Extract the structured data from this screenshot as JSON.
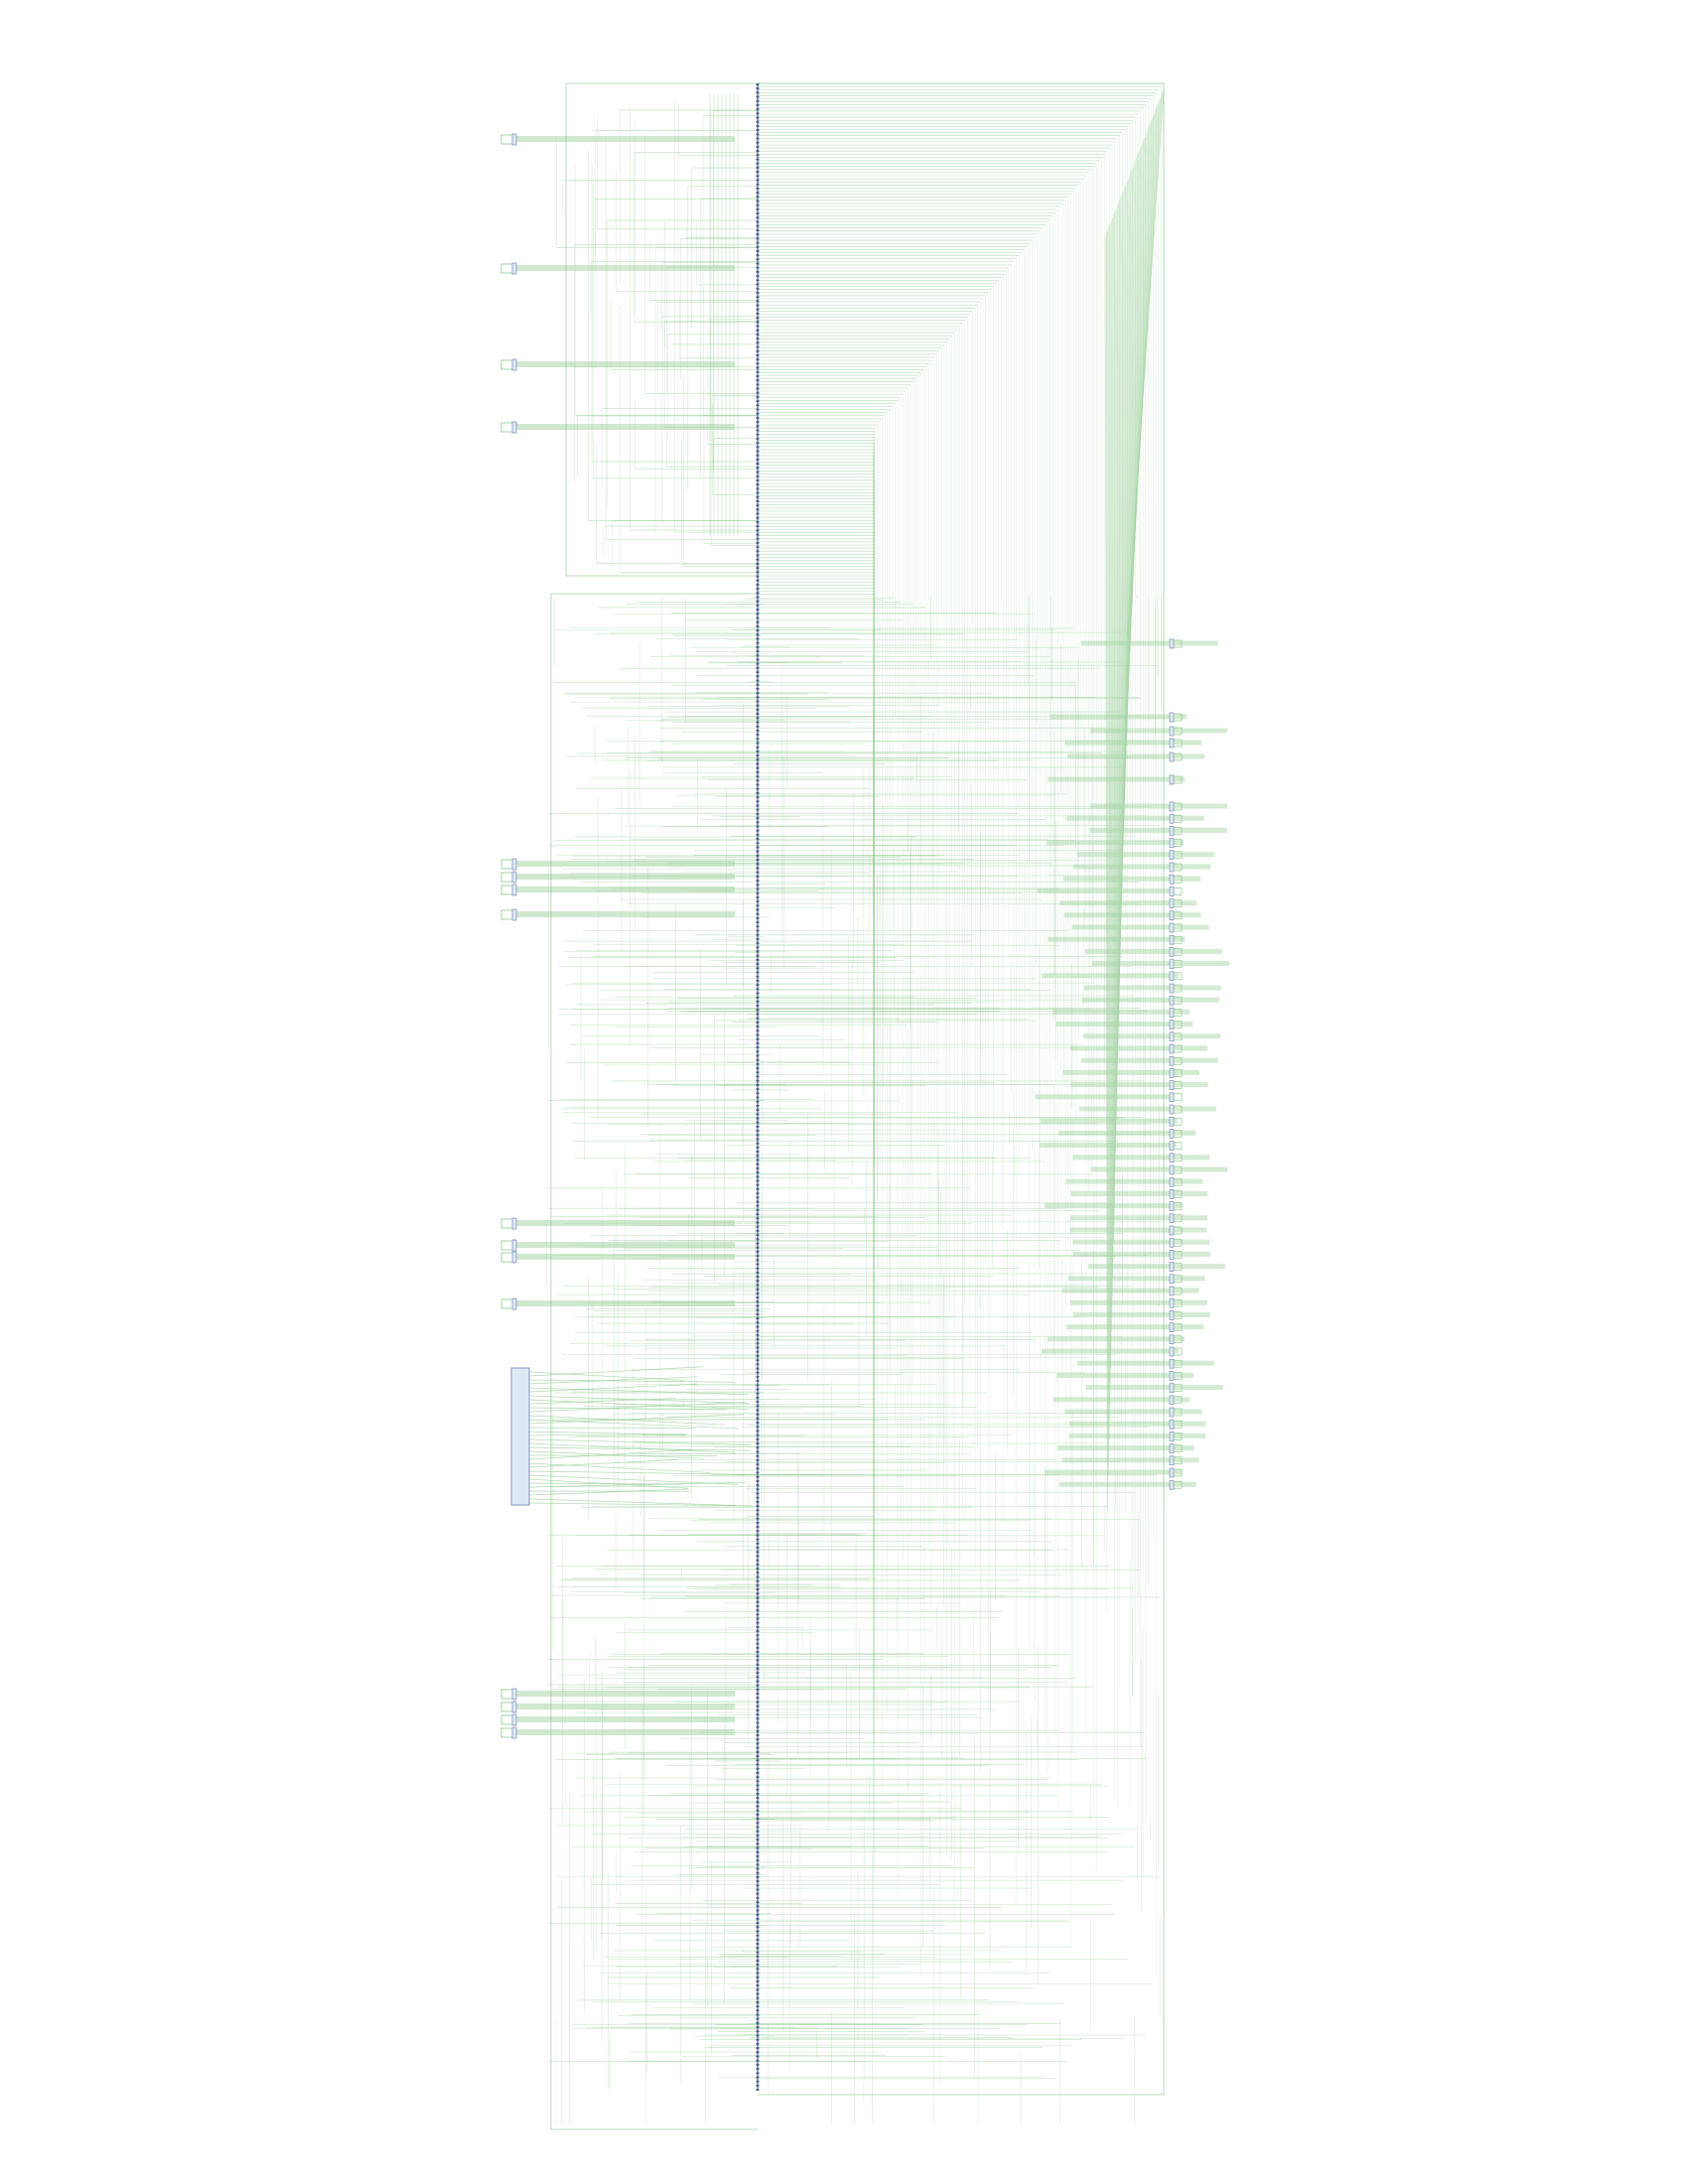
{
  "diagram": {
    "type": "netlist-schematic",
    "colors": {
      "background": "#ffffff",
      "wire": "#7fc07f",
      "wire_band": "#a9d6a9",
      "component_fill": "#dfe8f6",
      "component_stroke": "#6b7fa8",
      "pin": "#4a5a8a"
    },
    "nodes": [
      {
        "id": "spine-bus",
        "kind": "vertical-bus"
      },
      {
        "id": "left-bus",
        "kind": "vertical-bus"
      },
      {
        "id": "big-component",
        "kind": "block"
      },
      {
        "id": "left-connectors",
        "kind": "connector-group"
      },
      {
        "id": "right-connectors",
        "kind": "connector-group"
      }
    ]
  }
}
